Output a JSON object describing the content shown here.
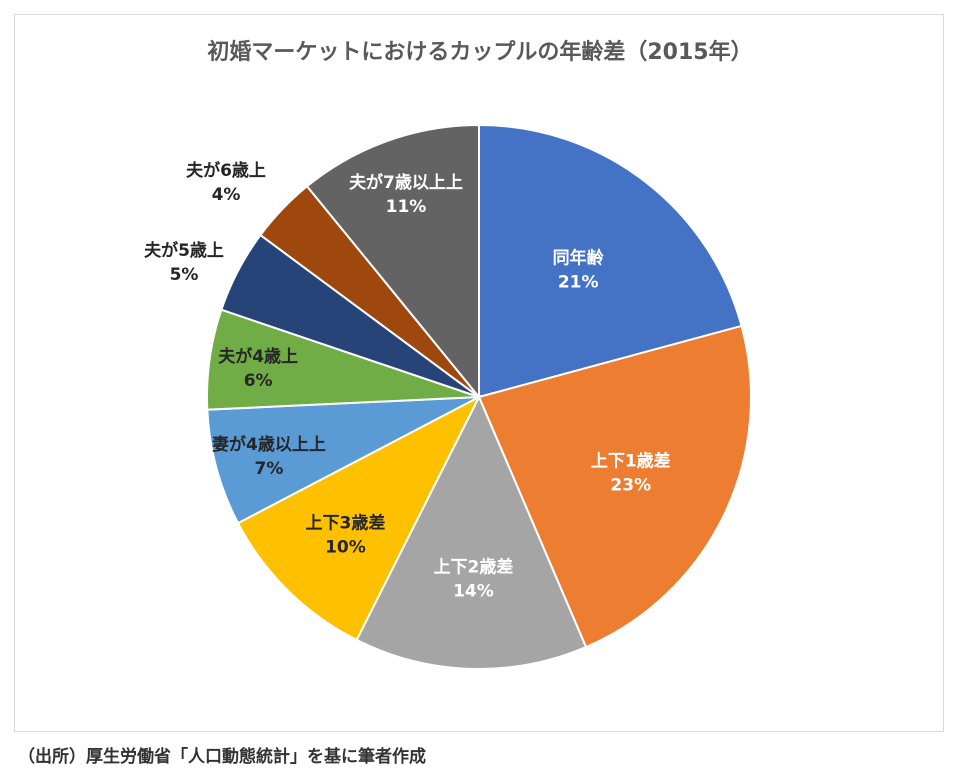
{
  "chart_data": {
    "type": "pie",
    "title": "初婚マーケットにおけるカップルの年齢差（2015年）",
    "slices": [
      {
        "label": "同年齢",
        "value": 21,
        "value_label": "21%",
        "color": "#4472C4"
      },
      {
        "label": "上下1歳差",
        "value": 23,
        "value_label": "23%",
        "color": "#ED7D31"
      },
      {
        "label": "上下2歳差",
        "value": 14,
        "value_label": "14%",
        "color": "#A5A5A5"
      },
      {
        "label": "上下3歳差",
        "value": 10,
        "value_label": "10%",
        "color": "#FFC000"
      },
      {
        "label": "妻が4歳以上上",
        "value": 7,
        "value_label": "7%",
        "color": "#5B9BD5"
      },
      {
        "label": "夫が4歳上",
        "value": 6,
        "value_label": "6%",
        "color": "#70AD47"
      },
      {
        "label": "夫が5歳上",
        "value": 5,
        "value_label": "5%",
        "color": "#264478"
      },
      {
        "label": "夫が6歳上",
        "value": 4,
        "value_label": "4%",
        "color": "#9E480E"
      },
      {
        "label": "夫が7歳以上上",
        "value": 11,
        "value_label": "11%",
        "color": "#636363"
      }
    ],
    "start": "12 o'clock",
    "direction": "clockwise"
  },
  "footer": {
    "source": "（出所）厚生労働省「人口動態統計」を基に筆者作成"
  }
}
